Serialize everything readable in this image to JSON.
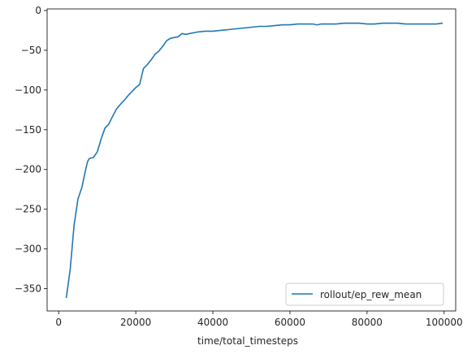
{
  "chart_data": {
    "type": "line",
    "title": "",
    "xlabel": "time/total_timesteps",
    "ylabel": "",
    "xlim": [
      -3000,
      103000
    ],
    "ylim": [
      -378,
      2
    ],
    "xticks": [
      0,
      20000,
      40000,
      60000,
      80000,
      100000
    ],
    "xtick_labels": [
      "0",
      "20000",
      "40000",
      "60000",
      "80000",
      "100000"
    ],
    "yticks": [
      0,
      -50,
      -100,
      -150,
      -200,
      -250,
      -300,
      -350
    ],
    "ytick_labels": [
      "0",
      "−50",
      "−100",
      "−150",
      "−200",
      "−250",
      "−300",
      "−350"
    ],
    "grid": false,
    "legend_position": "lower-right",
    "series": [
      {
        "name": "rollout/ep_rew_mean",
        "color": "#1f77b4",
        "x": [
          2000,
          3000,
          4000,
          5000,
          6000,
          7000,
          7500,
          8000,
          9000,
          10000,
          10500,
          11000,
          12000,
          13000,
          14000,
          15000,
          16000,
          17000,
          18000,
          19000,
          20000,
          21000,
          22000,
          23000,
          24000,
          25000,
          26000,
          27000,
          28000,
          29000,
          30000,
          31000,
          32000,
          33000,
          34000,
          36000,
          38000,
          40000,
          42000,
          44000,
          46000,
          48000,
          50000,
          52000,
          54000,
          56000,
          58000,
          60000,
          62000,
          64000,
          66000,
          67000,
          68000,
          70000,
          72000,
          74000,
          76000,
          78000,
          80000,
          82000,
          84000,
          85000,
          86000,
          88000,
          90000,
          92000,
          94000,
          96000,
          98000,
          99500
        ],
        "y": [
          -361,
          -325,
          -270,
          -237,
          -223,
          -200,
          -190,
          -186,
          -185,
          -178,
          -170,
          -162,
          -148,
          -143,
          -133,
          -124,
          -118,
          -113,
          -107,
          -102,
          -97,
          -93,
          -73,
          -68,
          -62,
          -55,
          -51,
          -45,
          -38,
          -35,
          -34,
          -33,
          -29,
          -30,
          -29,
          -27,
          -26,
          -26,
          -25,
          -24,
          -23,
          -22,
          -21,
          -20,
          -20,
          -19,
          -18,
          -18,
          -17,
          -17,
          -17,
          -18,
          -17,
          -17,
          -17,
          -16,
          -16,
          -16,
          -17,
          -17,
          -16,
          -16,
          -16,
          -16,
          -17,
          -17,
          -17,
          -17,
          -17,
          -16
        ]
      }
    ]
  }
}
